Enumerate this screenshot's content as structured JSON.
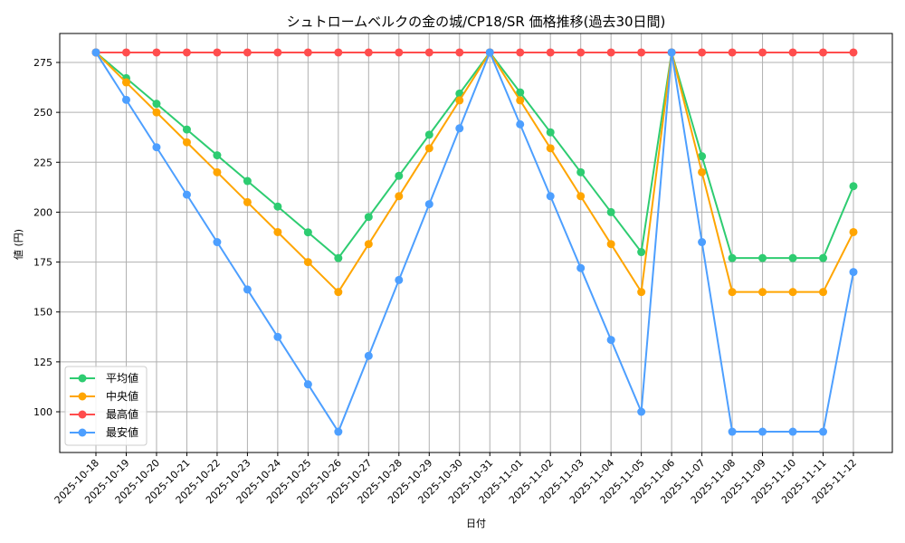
{
  "chart_data": {
    "type": "line",
    "title": "シュトロームベルクの金の城/CP18/SR 価格推移(過去30日間)",
    "xlabel": "日付",
    "ylabel": "値 (円)",
    "ylim": [
      82,
      290
    ],
    "yticks": [
      100,
      125,
      150,
      175,
      200,
      225,
      250,
      275
    ],
    "grid": true,
    "legend_position": "lower left",
    "categories": [
      "2025-10-18",
      "2025-10-19",
      "2025-10-20",
      "2025-10-21",
      "2025-10-22",
      "2025-10-23",
      "2025-10-24",
      "2025-10-25",
      "2025-10-26",
      "2025-10-27",
      "2025-10-28",
      "2025-10-29",
      "2025-10-30",
      "2025-10-31",
      "2025-11-01",
      "2025-11-02",
      "2025-11-03",
      "2025-11-04",
      "2025-11-05",
      "2025-11-06",
      "2025-11-07",
      "2025-11-08",
      "2025-11-09",
      "2025-11-10",
      "2025-11-11",
      "2025-11-12"
    ],
    "series": [
      {
        "name": "平均値",
        "color": "#2ecc71",
        "values": [
          280,
          267.1,
          254.3,
          241.4,
          228.5,
          215.6,
          202.8,
          189.9,
          177,
          197.6,
          218.2,
          238.8,
          259.4,
          280,
          260,
          240,
          220,
          200,
          180,
          280,
          228,
          177,
          177,
          177,
          177,
          213
        ]
      },
      {
        "name": "中央値",
        "color": "#ffa500",
        "values": [
          280,
          265,
          250,
          235,
          220,
          205,
          190,
          175,
          160,
          184,
          208,
          232,
          256,
          280,
          256,
          232,
          208,
          184,
          160,
          280,
          220,
          160,
          160,
          160,
          160,
          190
        ]
      },
      {
        "name": "最高値",
        "color": "#ff4d4d",
        "values": [
          280,
          280,
          280,
          280,
          280,
          280,
          280,
          280,
          280,
          280,
          280,
          280,
          280,
          280,
          280,
          280,
          280,
          280,
          280,
          280,
          280,
          280,
          280,
          280,
          280,
          280
        ]
      },
      {
        "name": "最安値",
        "color": "#4d9fff",
        "values": [
          280,
          256.25,
          232.5,
          208.75,
          185,
          161.25,
          137.5,
          113.75,
          90,
          128,
          166,
          204,
          242,
          280,
          244,
          208,
          172,
          136,
          100,
          280,
          185,
          90,
          90,
          90,
          90,
          170
        ]
      }
    ]
  }
}
